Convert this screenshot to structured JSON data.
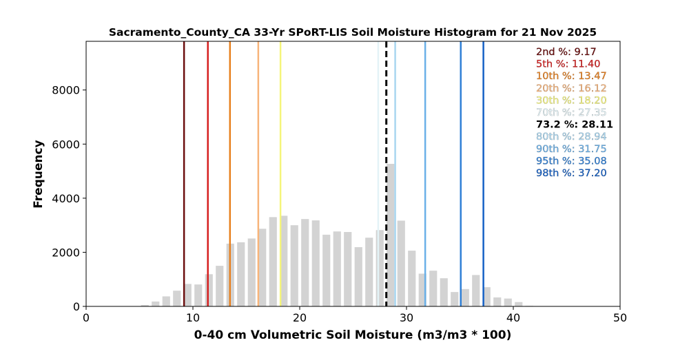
{
  "chart_data": {
    "type": "bar",
    "title": "Sacramento_County_CA 33-Yr SPoRT-LIS Soil Moisture Histogram for 21 Nov 2025",
    "xlabel": "0-40 cm Volumetric Soil Moisture (m3/m3 * 100)",
    "ylabel": "Frequency",
    "xlim": [
      0,
      50
    ],
    "ylim": [
      0,
      9800
    ],
    "xticks": [
      0,
      10,
      20,
      30,
      40,
      50
    ],
    "yticks": [
      0,
      2000,
      4000,
      6000,
      8000
    ],
    "bar_color": "#d3d3d3",
    "bars": {
      "x": [
        5.5,
        6.5,
        7.5,
        8.5,
        9.5,
        10.5,
        11.5,
        12.5,
        13.5,
        14.5,
        15.5,
        16.5,
        17.5,
        18.5,
        19.5,
        20.5,
        21.5,
        22.5,
        23.5,
        24.5,
        25.5,
        26.5,
        27.5,
        28.5,
        29.5,
        30.5,
        31.5,
        32.5,
        33.5,
        34.5,
        35.5,
        36.5,
        37.5,
        38.5,
        39.5,
        40.5,
        41.5
      ],
      "values": [
        50,
        180,
        370,
        580,
        830,
        810,
        1190,
        1500,
        2320,
        2370,
        2510,
        2870,
        3300,
        3350,
        3000,
        3230,
        3180,
        2650,
        2770,
        2750,
        2190,
        2540,
        2820,
        5270,
        3170,
        2060,
        1210,
        1320,
        1040,
        530,
        640,
        1160,
        710,
        330,
        290,
        160,
        20
      ]
    },
    "percentiles": [
      {
        "label": "2nd %",
        "value": 9.17,
        "text": "2nd %: 9.17",
        "color": "#6b0d0d"
      },
      {
        "label": "5th %",
        "value": 11.4,
        "text": "5th %: 11.40",
        "color": "#d62020"
      },
      {
        "label": "10th %",
        "value": 13.47,
        "text": "10th %: 13.47",
        "color": "#e8801e"
      },
      {
        "label": "20th %",
        "value": 16.12,
        "text": "20th %: 16.12",
        "color": "#f7b47a"
      },
      {
        "label": "30th %",
        "value": 18.2,
        "text": "30th %: 18.20",
        "color": "#f5f57a"
      },
      {
        "label": "70th %",
        "value": 27.35,
        "text": "70th %: 27.35",
        "color": "#e3f3f7"
      },
      {
        "label": "80th %",
        "value": 28.94,
        "text": "80th %: 28.94",
        "color": "#a9d6f0"
      },
      {
        "label": "90th %",
        "value": 31.75,
        "text": "90th %: 31.75",
        "color": "#6ab0e8"
      },
      {
        "label": "95th %",
        "value": 35.08,
        "text": "95th %: 35.08",
        "color": "#2f7fd6"
      },
      {
        "label": "98th %",
        "value": 37.2,
        "text": "98th %: 37.20",
        "color": "#1560c6"
      }
    ],
    "current": {
      "label": "73.2 %",
      "value": 28.11,
      "text": "73.2 %: 28.11",
      "color": "#000000",
      "style": "dashed"
    }
  }
}
